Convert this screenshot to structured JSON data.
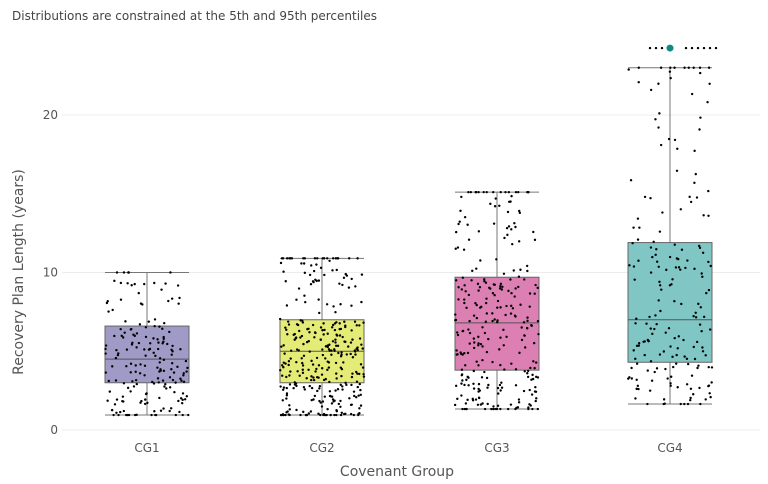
{
  "chart_data": {
    "type": "box",
    "title": "Distributions are constrained at the 5th and 95th percentiles",
    "xlabel": "Covenant Group",
    "ylabel": "Recovery Plan Length (years)",
    "ylim": [
      0,
      25
    ],
    "yticks": [
      0,
      10,
      20
    ],
    "grid": true,
    "categories": [
      "CG1",
      "CG2",
      "CG3",
      "CG4"
    ],
    "series": [
      {
        "name": "CG1",
        "color": "#a09ac6",
        "min": 0.95,
        "q1": 3.0,
        "median": 4.5,
        "q3": 6.6,
        "max": 10.0,
        "n_points": 180,
        "outliers": []
      },
      {
        "name": "CG2",
        "color": "#e5eb77",
        "min": 0.95,
        "q1": 3.0,
        "median": 5.0,
        "q3": 7.0,
        "max": 10.9,
        "n_points": 330,
        "outliers": []
      },
      {
        "name": "CG3",
        "color": "#dc7fb2",
        "min": 1.33,
        "q1": 3.8,
        "median": 6.8,
        "q3": 9.7,
        "max": 15.1,
        "n_points": 280,
        "outliers": []
      },
      {
        "name": "CG4",
        "color": "#7fc6c4",
        "min": 1.65,
        "q1": 4.3,
        "median": 7.0,
        "q3": 11.9,
        "max": 23.0,
        "n_points": 190,
        "outliers": [
          24.25
        ]
      }
    ],
    "outlier_color": "#0e8a86"
  }
}
